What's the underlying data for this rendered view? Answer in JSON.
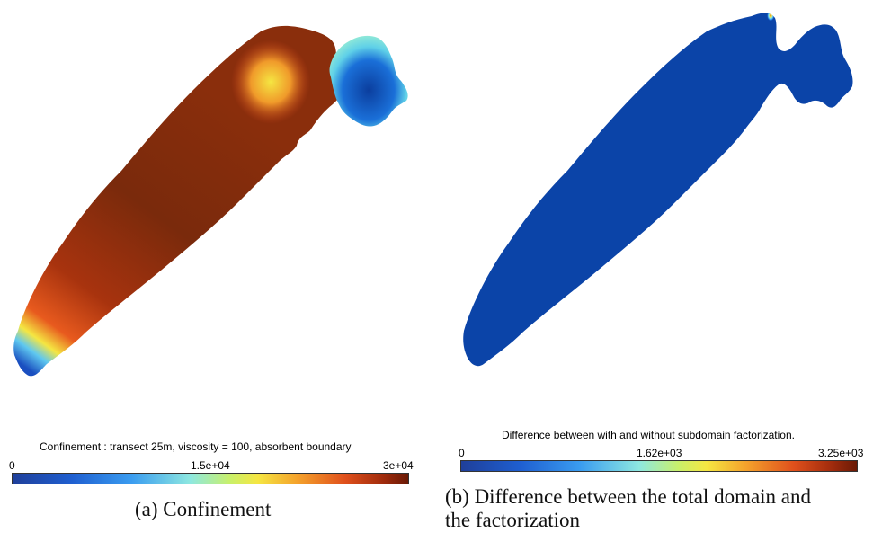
{
  "panel_a": {
    "colorbar_title": "Confinement : transect 25m, viscosity = 100, absorbent boundary",
    "ticks": [
      "0",
      "1.5e+04",
      "3e+04"
    ],
    "caption": "(a) Confinement"
  },
  "panel_b": {
    "colorbar_title": "Difference between with and without subdomain factorization.",
    "ticks": [
      "0",
      "1.62e+03",
      "3.25e+03"
    ],
    "caption_line1": "(b) Difference between the total domain and",
    "caption_line2": "the factorization"
  },
  "colors": {
    "deep_blue": "#0b3e9e",
    "dark_red": "#7a2a0c",
    "orange": "#e0501c",
    "yellow": "#f5e642",
    "cyan": "#8ee8e0"
  }
}
